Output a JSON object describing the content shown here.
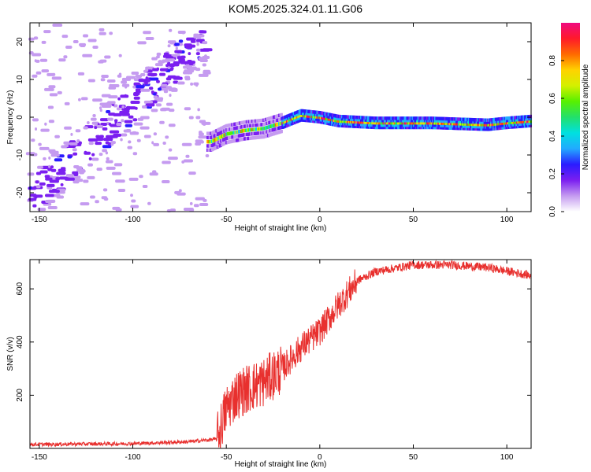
{
  "figure": {
    "title": "KOM5.2025.324.01.11.G06"
  },
  "colors": {
    "spectrum": [
      "#ffffff",
      "#c59bf0",
      "#7b1ff0",
      "#2a1bff",
      "#22aaff",
      "#00e0e0",
      "#22e06b",
      "#57f000",
      "#d4f000",
      "#ffd200",
      "#ff6a00",
      "#ff1a2a",
      "#f00a80"
    ],
    "snr_line": "#e8302e"
  },
  "chart_data": [
    {
      "type": "heatmap",
      "name": "spectrogram",
      "xlabel": "Height of straight line (km)",
      "ylabel": "Frequency (Hz)",
      "xlim": [
        -155,
        113
      ],
      "ylim": [
        -25,
        25
      ],
      "xticks": [
        -150,
        -100,
        -50,
        0,
        50,
        100
      ],
      "yticks": [
        -20,
        -10,
        0,
        10,
        20
      ],
      "colorbar": {
        "label": "Normalized spectral amplitude",
        "range": [
          0,
          1
        ],
        "ticks": [
          "0.0",
          "0.2",
          "0.4",
          "0.6",
          "0.8"
        ]
      },
      "ridge": {
        "description_points": [
          {
            "x": -58,
            "y": -6.5
          },
          {
            "x": -50,
            "y": -4.5
          },
          {
            "x": -40,
            "y": -3.5
          },
          {
            "x": -30,
            "y": -3
          },
          {
            "x": -20,
            "y": -1.5
          },
          {
            "x": -10,
            "y": 0.5
          },
          {
            "x": 0,
            "y": 0
          },
          {
            "x": 10,
            "y": -1
          },
          {
            "x": 30,
            "y": -1.5
          },
          {
            "x": 60,
            "y": -1.5
          },
          {
            "x": 90,
            "y": -2
          },
          {
            "x": 100,
            "y": -1.5
          },
          {
            "x": 113,
            "y": -1
          }
        ]
      },
      "noise_band": {
        "x_start": -155,
        "x_end": -60,
        "center_start": -22,
        "center_end": 22
      }
    },
    {
      "type": "line",
      "name": "snr",
      "xlabel": "Height of straight line (km)",
      "ylabel": "SNR (v/v)",
      "xlim": [
        -155,
        113
      ],
      "ylim": [
        0,
        710
      ],
      "xticks": [
        -150,
        -100,
        -50,
        0,
        50,
        100
      ],
      "yticks": [
        200,
        400,
        600
      ],
      "trend": [
        {
          "x": -155,
          "y": 15
        },
        {
          "x": -100,
          "y": 18
        },
        {
          "x": -70,
          "y": 25
        },
        {
          "x": -55,
          "y": 35
        },
        {
          "x": -50,
          "y": 150
        },
        {
          "x": -45,
          "y": 200
        },
        {
          "x": -40,
          "y": 220
        },
        {
          "x": -30,
          "y": 250
        },
        {
          "x": -20,
          "y": 300
        },
        {
          "x": -10,
          "y": 380
        },
        {
          "x": 0,
          "y": 440
        },
        {
          "x": 10,
          "y": 540
        },
        {
          "x": 20,
          "y": 630
        },
        {
          "x": 30,
          "y": 665
        },
        {
          "x": 50,
          "y": 690
        },
        {
          "x": 70,
          "y": 690
        },
        {
          "x": 90,
          "y": 680
        },
        {
          "x": 113,
          "y": 650
        }
      ]
    }
  ]
}
